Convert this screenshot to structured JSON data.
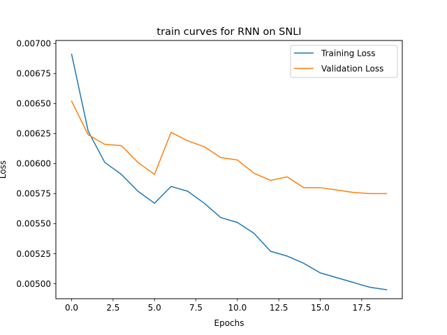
{
  "chart_data": {
    "type": "line",
    "title": "train curves for RNN on SNLI",
    "xlabel": "Epochs",
    "ylabel": "Loss",
    "xlim": [
      -0.95,
      19.95
    ],
    "ylim": [
      0.004875,
      0.007025
    ],
    "x_ticks": [
      0,
      2.5,
      5,
      7.5,
      10,
      12.5,
      15,
      17.5
    ],
    "x_tick_labels": [
      "0.0",
      "2.5",
      "5.0",
      "7.5",
      "10.0",
      "12.5",
      "15.0",
      "17.5"
    ],
    "y_ticks": [
      0.005,
      0.00525,
      0.0055,
      0.00575,
      0.006,
      0.00625,
      0.0065,
      0.00675,
      0.007
    ],
    "y_tick_labels": [
      "0.00500",
      "0.00525",
      "0.00550",
      "0.00575",
      "0.00600",
      "0.00625",
      "0.00650",
      "0.00675",
      "0.00700"
    ],
    "grid": false,
    "legend_position": "top-right",
    "x": [
      0,
      1,
      2,
      3,
      4,
      5,
      6,
      7,
      8,
      9,
      10,
      11,
      12,
      13,
      14,
      15,
      16,
      17,
      18,
      19
    ],
    "series": [
      {
        "name": "Training Loss",
        "color": "#1f77b4",
        "values": [
          0.00691,
          0.00627,
          0.00601,
          0.00591,
          0.00577,
          0.00567,
          0.00581,
          0.00577,
          0.00567,
          0.00555,
          0.00551,
          0.00542,
          0.00527,
          0.00523,
          0.00517,
          0.00509,
          0.00505,
          0.00501,
          0.00497,
          0.00495
        ]
      },
      {
        "name": "Validation Loss",
        "color": "#ff7f0e",
        "values": [
          0.00652,
          0.00624,
          0.00616,
          0.00615,
          0.00601,
          0.00591,
          0.00626,
          0.00619,
          0.00614,
          0.00605,
          0.00603,
          0.00592,
          0.00586,
          0.00589,
          0.0058,
          0.0058,
          0.00578,
          0.00576,
          0.00575,
          0.00575
        ]
      }
    ]
  }
}
